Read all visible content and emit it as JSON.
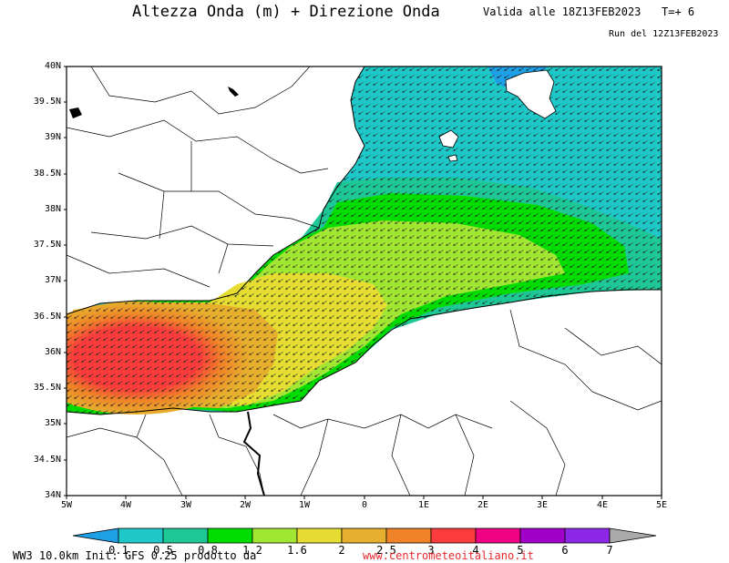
{
  "header": {
    "title": "Altezza Onda (m) + Direzione Onda",
    "valid": "Valida alle 18Z13FEB2023",
    "tplus": "T=+ 6",
    "run": "Run del 12Z13FEB2023"
  },
  "axes": {
    "lat_labels": [
      "40N",
      "39.5N",
      "39N",
      "38.5N",
      "38N",
      "37.5N",
      "37N",
      "36.5N",
      "36N",
      "35.5N",
      "35N",
      "34.5N",
      "34N"
    ],
    "lon_labels": [
      "5W",
      "4W",
      "3W",
      "2W",
      "1W",
      "0",
      "1E",
      "2E",
      "3E",
      "4E",
      "5E"
    ]
  },
  "colorbar": {
    "labels": [
      "0.1",
      "0.5",
      "0.8",
      "1.2",
      "1.6",
      "2",
      "2.5",
      "3",
      "4",
      "5",
      "6",
      "7"
    ],
    "colors": [
      "#1ea0e6",
      "#1ec8c8",
      "#1ec896",
      "#00dc00",
      "#a0e632",
      "#e6dc32",
      "#e6af2d",
      "#f08228",
      "#fa3c3c",
      "#f00082",
      "#a000c8",
      "#8c28e6"
    ]
  },
  "footer": {
    "model": "WW3 10.0km Init: GFS 0.25 prodotto da",
    "site": "www.centrometeoitaliano.it"
  }
}
